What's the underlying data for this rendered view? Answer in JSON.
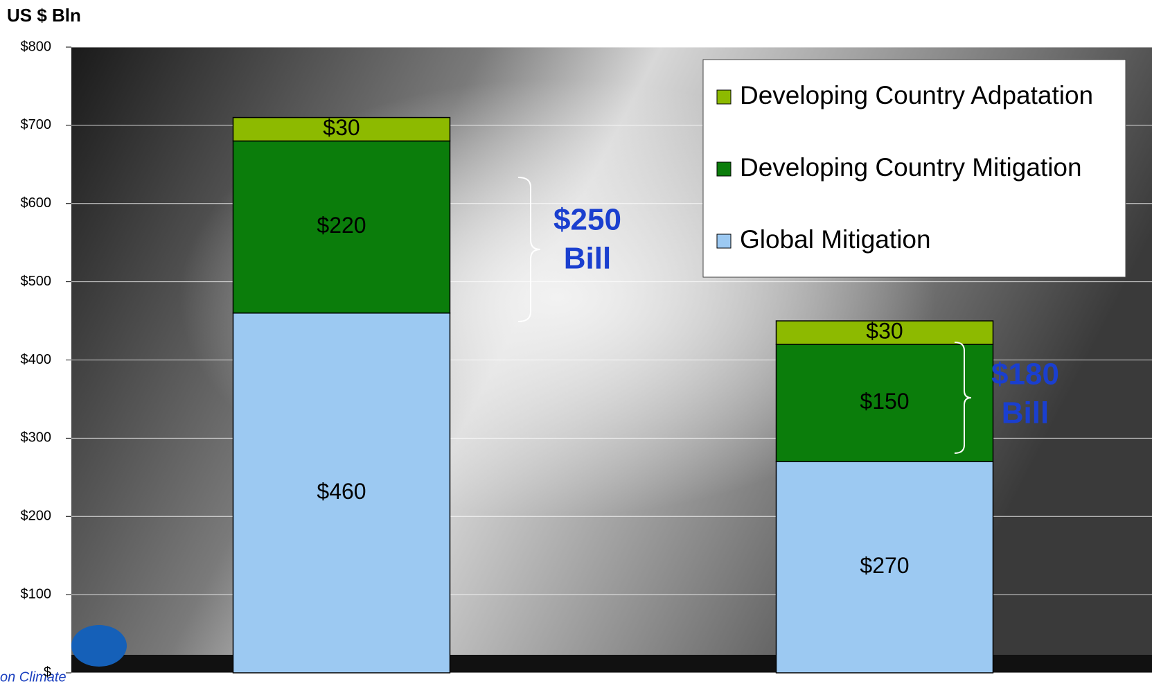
{
  "chart_data": {
    "type": "stacked_bar",
    "y_label": "US $ Bln",
    "categories": [
      null,
      null
    ],
    "series": [
      {
        "name": "Global Mitigation",
        "color": "#9cc9f2",
        "values": [
          460,
          270
        ],
        "value_labels": [
          "$460",
          "$270"
        ]
      },
      {
        "name": "Developing Country Mitigation",
        "color": "#0b7d0b",
        "values": [
          220,
          150
        ],
        "value_labels": [
          "$220",
          "$150"
        ]
      },
      {
        "name": "Developing Country Adpatation",
        "color": "#8dba00",
        "values": [
          30,
          30
        ],
        "value_labels": [
          "$30",
          "$30"
        ]
      }
    ],
    "ylim": [
      0,
      800
    ],
    "yticks": [
      {
        "value": 0,
        "label": "$"
      },
      {
        "value": 100,
        "label": "$100"
      },
      {
        "value": 200,
        "label": "$200"
      },
      {
        "value": 300,
        "label": "$300"
      },
      {
        "value": 400,
        "label": "$400"
      },
      {
        "value": 500,
        "label": "$500"
      },
      {
        "value": 600,
        "label": "$600"
      },
      {
        "value": 700,
        "label": "$700"
      },
      {
        "value": 800,
        "label": "$800"
      }
    ],
    "grid": true,
    "legend": "top-right",
    "annotations": [
      {
        "lines": [
          "$250",
          "Bill"
        ]
      },
      {
        "lines": [
          "$180",
          "Bill"
        ]
      }
    ],
    "footer": "on Climate"
  }
}
